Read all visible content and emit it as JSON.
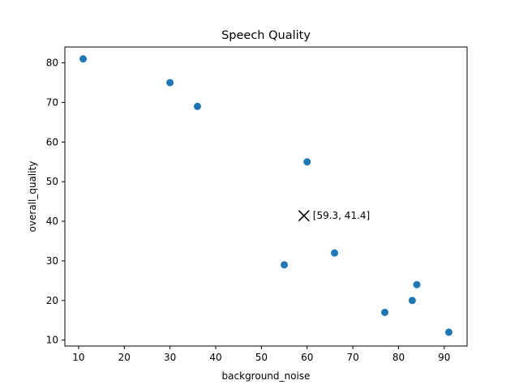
{
  "chart_data": {
    "type": "scatter",
    "title": "Speech Quality",
    "xlabel": "background_noise",
    "ylabel": "overall_quality",
    "xlim": [
      7,
      95
    ],
    "ylim": [
      8.5,
      84
    ],
    "xticks": [
      10,
      20,
      30,
      40,
      50,
      60,
      70,
      80,
      90
    ],
    "yticks": [
      10,
      20,
      30,
      40,
      50,
      60,
      70,
      80
    ],
    "grid": false,
    "series": [
      {
        "color": "#1f77b4",
        "points": [
          {
            "x": 11,
            "y": 81
          },
          {
            "x": 30,
            "y": 75
          },
          {
            "x": 36,
            "y": 69
          },
          {
            "x": 60,
            "y": 55
          },
          {
            "x": 55,
            "y": 29
          },
          {
            "x": 66,
            "y": 32
          },
          {
            "x": 77,
            "y": 17
          },
          {
            "x": 83,
            "y": 20
          },
          {
            "x": 84,
            "y": 24
          },
          {
            "x": 91,
            "y": 12
          }
        ]
      }
    ],
    "marker": {
      "x": 59.3,
      "y": 41.4,
      "label": "[59.3, 41.4]",
      "symbol": "x",
      "color": "#000000"
    }
  }
}
